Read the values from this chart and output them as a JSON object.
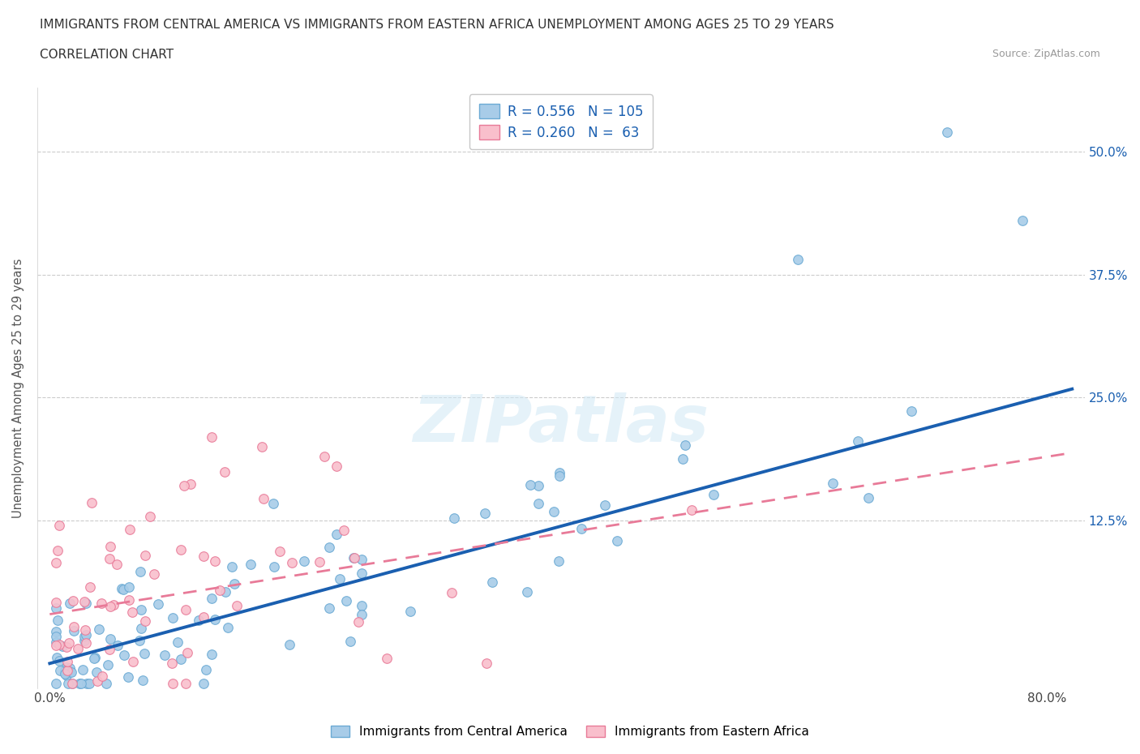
{
  "title_line1": "IMMIGRANTS FROM CENTRAL AMERICA VS IMMIGRANTS FROM EASTERN AFRICA UNEMPLOYMENT AMONG AGES 25 TO 29 YEARS",
  "title_line2": "CORRELATION CHART",
  "source_text": "Source: ZipAtlas.com",
  "ylabel": "Unemployment Among Ages 25 to 29 years",
  "watermark": "ZIPatlas",
  "series1_color": "#a8cce8",
  "series1_edge": "#6baad4",
  "series2_color": "#f9bfcc",
  "series2_edge": "#e87a98",
  "trendline1_color": "#1a5fb0",
  "trendline2_color": "#e87a98",
  "legend_label1": "Immigrants from Central America",
  "legend_label2": "Immigrants from Eastern Africa",
  "background_color": "#ffffff",
  "grid_color": "#cccccc",
  "seed": 42,
  "ytick_labels_right": [
    "12.5%",
    "25.0%",
    "37.5%",
    "50.0%"
  ],
  "ytick_pos": [
    0.125,
    0.25,
    0.375,
    0.5
  ],
  "legend_R1": "R = 0.556",
  "legend_N1": "N = 105",
  "legend_R2": "R = 0.260",
  "legend_N2": "N =  63"
}
